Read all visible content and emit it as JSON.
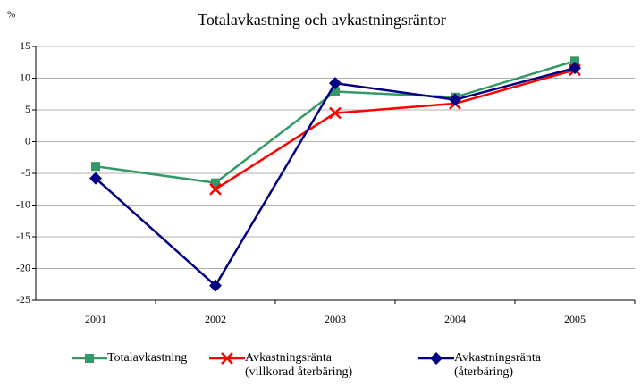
{
  "chart_data": {
    "type": "line",
    "title": "Totalavkastning och avkastningsräntor",
    "y_label": "%",
    "categories": [
      "2001",
      "2002",
      "2003",
      "2004",
      "2005"
    ],
    "series": [
      {
        "name": "Totalavkastning",
        "color": "#339966",
        "marker": "square",
        "values": [
          -3.9,
          -6.5,
          7.9,
          7.0,
          12.7
        ]
      },
      {
        "name": "Avkastningsränta (villkorad återbäring)",
        "color": "#ff0000",
        "marker": "x",
        "values": [
          null,
          -7.5,
          4.5,
          6.0,
          11.3
        ]
      },
      {
        "name": "Avkastningsränta (återbäring)",
        "color": "#000080",
        "marker": "diamond",
        "values": [
          -5.8,
          -22.7,
          9.2,
          6.6,
          11.6
        ]
      }
    ],
    "ylim": [
      -25,
      15
    ],
    "yticks": [
      -25,
      -20,
      -15,
      -10,
      -5,
      0,
      5,
      10,
      15
    ],
    "grid": true
  }
}
